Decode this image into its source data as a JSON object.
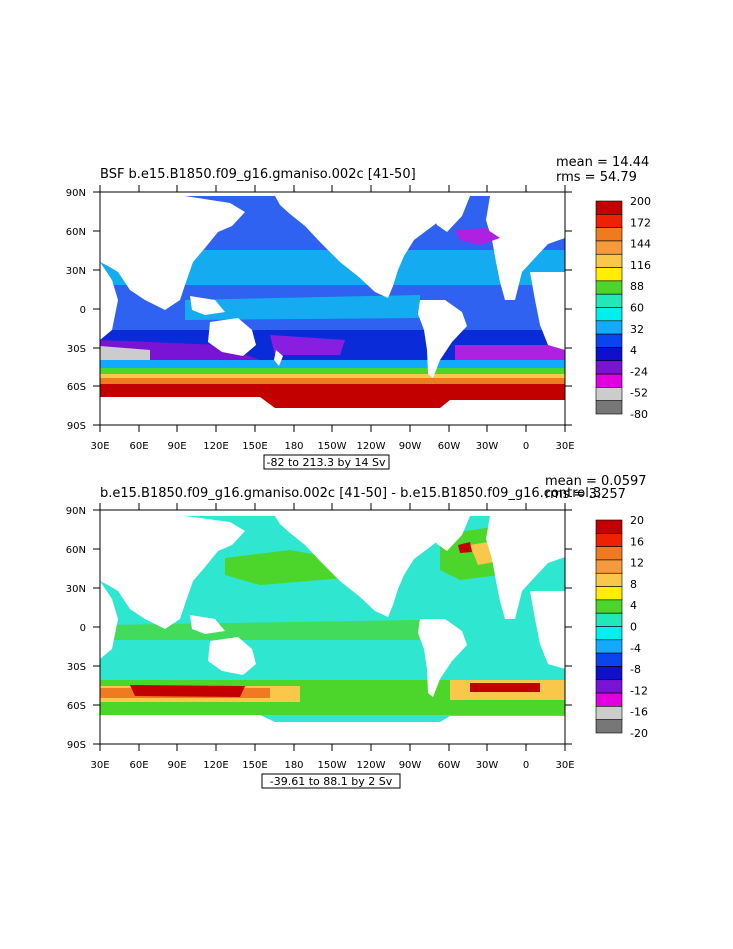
{
  "panels": [
    {
      "id": "top",
      "title": "BSF b.e15.B1850.f09_g16.gmaniso.002c [41-50]",
      "stats": {
        "mean": "mean = 14.44",
        "rms": "rms = 54.79"
      },
      "range": "-82 to 213.3 by 14 Sv",
      "colorbar_labels": [
        "200",
        "172",
        "144",
        "116",
        "88",
        "60",
        "32",
        "4",
        "-24",
        "-52",
        "-80"
      ],
      "colorbar_colors": [
        "#c30000",
        "#ee2200",
        "#f07a20",
        "#f59a3d",
        "#f9c84a",
        "#ffee00",
        "#4cd62b",
        "#22e8b8",
        "#00f0f0",
        "#11aaff",
        "#0a44ee",
        "#1010cc",
        "#7a14d4",
        "#e000e0",
        "#cccccc",
        "#777777"
      ],
      "legend_colors": {
        "fill_ocean": "#2f62f0",
        "fill_land": "#ffffff"
      }
    },
    {
      "id": "bottom",
      "title": "b.e15.B1850.f09_g16.gmaniso.002c [41-50] - b.e15.B1850.f09_g16.control.3",
      "stats": {
        "mean": "mean = 0.0597",
        "rms": "rms = 3.257"
      },
      "range": "-39.61 to 88.1 by 2 Sv",
      "colorbar_labels": [
        "20",
        "16",
        "12",
        "8",
        "4",
        "0",
        "-4",
        "-8",
        "-12",
        "-16",
        "-20"
      ],
      "colorbar_colors": [
        "#c30000",
        "#ee2200",
        "#f07a20",
        "#f59a3d",
        "#f9c84a",
        "#ffee00",
        "#4cd62b",
        "#22e8b8",
        "#00f0f0",
        "#11aaff",
        "#0a44ee",
        "#1010cc",
        "#7a14d4",
        "#e000e0",
        "#cccccc",
        "#777777"
      ],
      "legend_colors": {
        "fill_ocean": "#2fe6d0",
        "fill_land": "#ffffff"
      }
    }
  ],
  "axes": {
    "lat_labels": [
      "90N",
      "60N",
      "30N",
      "0",
      "30S",
      "60S",
      "90S"
    ],
    "lon_labels": [
      "30E",
      "60E",
      "90E",
      "120E",
      "150E",
      "180",
      "150W",
      "120W",
      "90W",
      "60W",
      "30W",
      "0",
      "30E"
    ]
  }
}
